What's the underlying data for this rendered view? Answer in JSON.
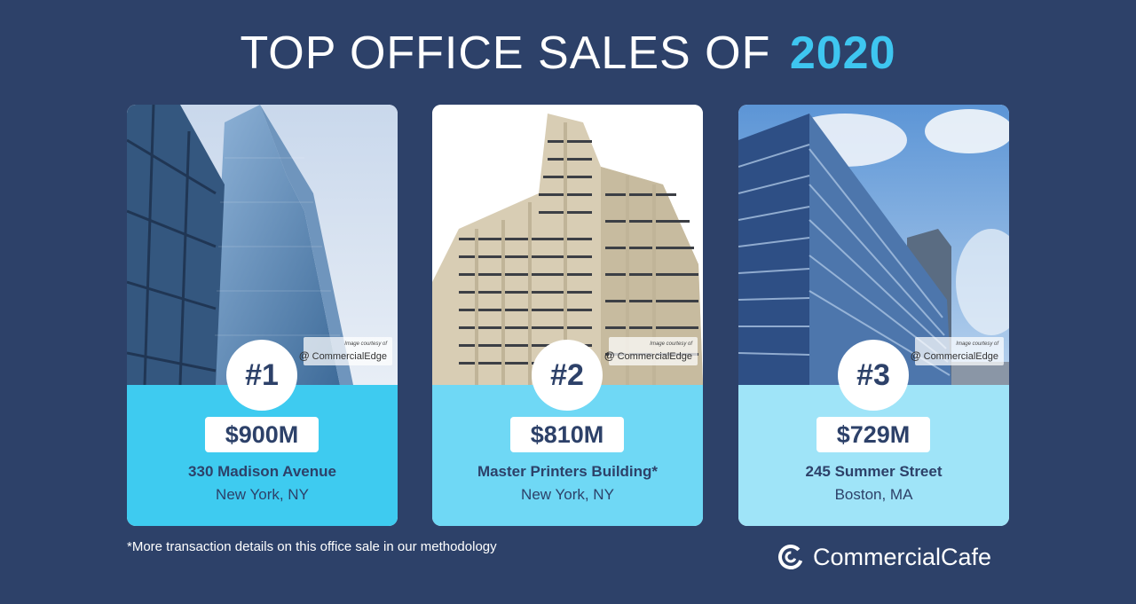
{
  "header": {
    "title_main": "TOP OFFICE SALES OF",
    "title_year": "2020"
  },
  "cards": [
    {
      "rank": "#1",
      "price": "$900M",
      "name": "330 Madison Avenue",
      "city": "New York, NY",
      "credit_small": "Image courtesy of",
      "credit_brand": "CommercialEdge",
      "info_color": "#3ecbf0"
    },
    {
      "rank": "#2",
      "price": "$810M",
      "name": "Master Printers Building*",
      "city": "New York, NY",
      "credit_small": "Image courtesy of",
      "credit_brand": "CommercialEdge",
      "info_color": "#6fd8f5"
    },
    {
      "rank": "#3",
      "price": "$729M",
      "name": "245 Summer Street",
      "city": "Boston, MA",
      "credit_small": "Image courtesy of",
      "credit_brand": "CommercialEdge",
      "info_color": "#9fe4f8"
    }
  ],
  "footnote": "*More transaction details on this office sale in our methodology",
  "logo": {
    "text": "CommercialCafe"
  },
  "colors": {
    "background": "#2d4169",
    "accent": "#3ec6f0",
    "text_dark": "#2d4169"
  }
}
